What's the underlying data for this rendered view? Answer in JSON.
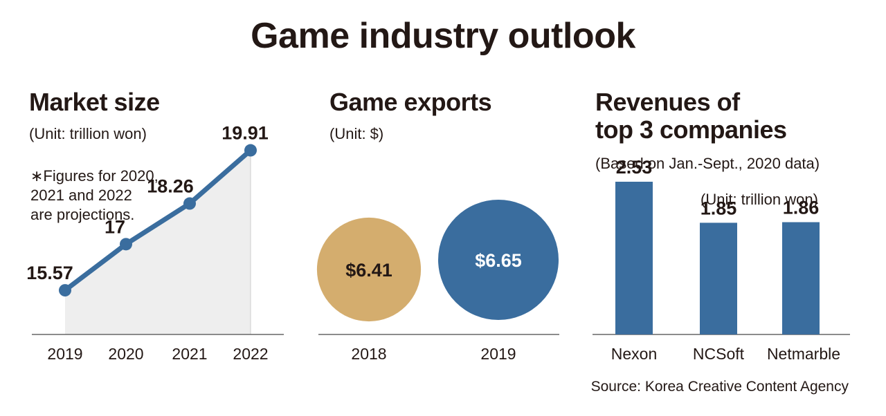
{
  "title": "Game industry outlook",
  "source": "Source: Korea Creative Content Agency",
  "colors": {
    "accent": "#3a6d9e",
    "gold": "#d4ad6e",
    "area": "#eeeeee",
    "axis": "#666666"
  },
  "chart_data": [
    {
      "type": "line",
      "title": "Market size",
      "unit": "(Unit: trillion won)",
      "note": [
        "∗Figures for 2020,",
        "2021 and 2022",
        "are projections."
      ],
      "categories": [
        "2019",
        "2020",
        "2021",
        "2022"
      ],
      "values": [
        15.57,
        17,
        18.26,
        19.91
      ],
      "value_labels": [
        "15.57",
        "17",
        "18.26",
        "19.91"
      ],
      "ylim": [
        14.5,
        20.5
      ],
      "area_fill": true
    },
    {
      "type": "bubble",
      "title": "Game exports",
      "unit": "(Unit: $)",
      "categories": [
        "2018",
        "2019"
      ],
      "values": [
        6.41,
        6.65
      ],
      "value_labels": [
        "$6.41",
        "$6.65"
      ]
    },
    {
      "type": "bar",
      "title": [
        "Revenues of",
        "top 3 companies"
      ],
      "subtitle": "(Based on Jan.-Sept., 2020 data)",
      "unit": "(Unit: trillion won)",
      "categories": [
        "Nexon",
        "NCSoft",
        "Netmarble"
      ],
      "values": [
        2.53,
        1.85,
        1.86
      ],
      "value_labels": [
        "2.53",
        "1.85",
        "1.86"
      ],
      "ylim": [
        0,
        3
      ]
    }
  ]
}
